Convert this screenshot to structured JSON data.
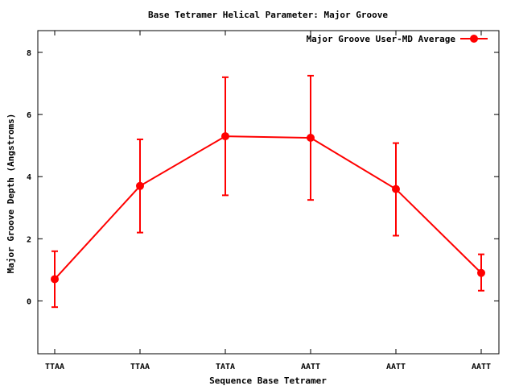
{
  "chart_data": {
    "type": "line",
    "title": "Base Tetramer Helical Parameter: Major Groove",
    "xlabel": "Sequence Base Tetramer",
    "ylabel": "Major Groove Depth (Angstroms)",
    "categories": [
      "TTAA",
      "TTAA",
      "TATA",
      "AATT",
      "AATT",
      "AATT"
    ],
    "ylim": [
      -1.7,
      8.7
    ],
    "yticks": [
      0,
      2,
      4,
      6,
      8
    ],
    "grid": false,
    "legend_position": "top-right",
    "series": [
      {
        "name": "Major Groove User-MD Average",
        "color": "#ff0000",
        "values": [
          0.7,
          3.7,
          5.3,
          5.25,
          3.6,
          0.9
        ],
        "error_low": [
          -0.2,
          2.2,
          3.4,
          3.25,
          2.1,
          0.33
        ],
        "error_high": [
          1.6,
          5.2,
          7.2,
          7.25,
          5.08,
          1.5
        ]
      }
    ]
  }
}
